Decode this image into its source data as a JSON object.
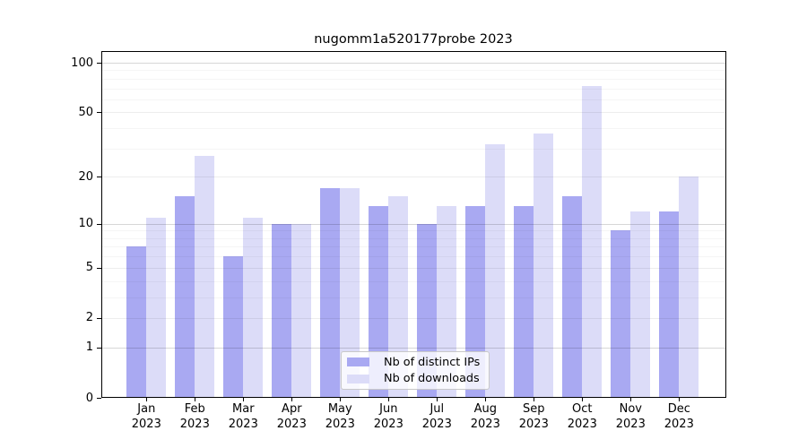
{
  "figure": {
    "title": "nugomm1a520177probe 2023"
  },
  "legend": {
    "items": [
      {
        "label": "Nb of distinct IPs",
        "series": "ips"
      },
      {
        "label": "Nb of downloads",
        "series": "downloads"
      }
    ]
  },
  "colors": {
    "ips_bar": "#a9a9f2",
    "downloads_bar": "#dcdcf8",
    "axis": "#000000",
    "grid_decade": "rgba(0,0,0,0.155)",
    "grid_labeled": "rgba(0,0,0,0.07)",
    "grid_minor": "rgba(0,0,0,0.04)",
    "legend_border": "#c9c9c9",
    "legend_bg": "rgba(255,255,255,0.8)",
    "text": "#000000"
  },
  "x_axis": {
    "months": [
      "Jan",
      "Feb",
      "Mar",
      "Apr",
      "May",
      "Jun",
      "Jul",
      "Aug",
      "Sep",
      "Oct",
      "Nov",
      "Dec"
    ],
    "year": "2023"
  },
  "y_axis": {
    "ticks": [
      0,
      1,
      2,
      5,
      10,
      20,
      50,
      100
    ],
    "minor_ticks": [
      3,
      4,
      6,
      7,
      8,
      9,
      30,
      40,
      60,
      70,
      80,
      90
    ],
    "scale": "log10(value+1)"
  },
  "chart_data": {
    "type": "bar",
    "title": "nugomm1a520177probe 2023",
    "categories": [
      "Jan 2023",
      "Feb 2023",
      "Mar 2023",
      "Apr 2023",
      "May 2023",
      "Jun 2023",
      "Jul 2023",
      "Aug 2023",
      "Sep 2023",
      "Oct 2023",
      "Nov 2023",
      "Dec 2023"
    ],
    "series": [
      {
        "name": "Nb of distinct IPs",
        "color": "#a9a9f2",
        "values": [
          7,
          15,
          6,
          10,
          17,
          13,
          10,
          13,
          13,
          15,
          9,
          12
        ]
      },
      {
        "name": "Nb of downloads",
        "color": "#dcdcf8",
        "values": [
          11,
          27,
          11,
          10,
          17,
          15,
          13,
          32,
          37,
          72,
          12,
          20
        ]
      }
    ],
    "xlabel": "",
    "ylabel": "",
    "y_ticks": [
      0,
      1,
      2,
      5,
      10,
      20,
      50,
      100
    ],
    "ylim": [
      0,
      117
    ],
    "y_scale": "pseudo-log: y = log10(value+1)",
    "grid": true,
    "legend_position": "lower center"
  }
}
